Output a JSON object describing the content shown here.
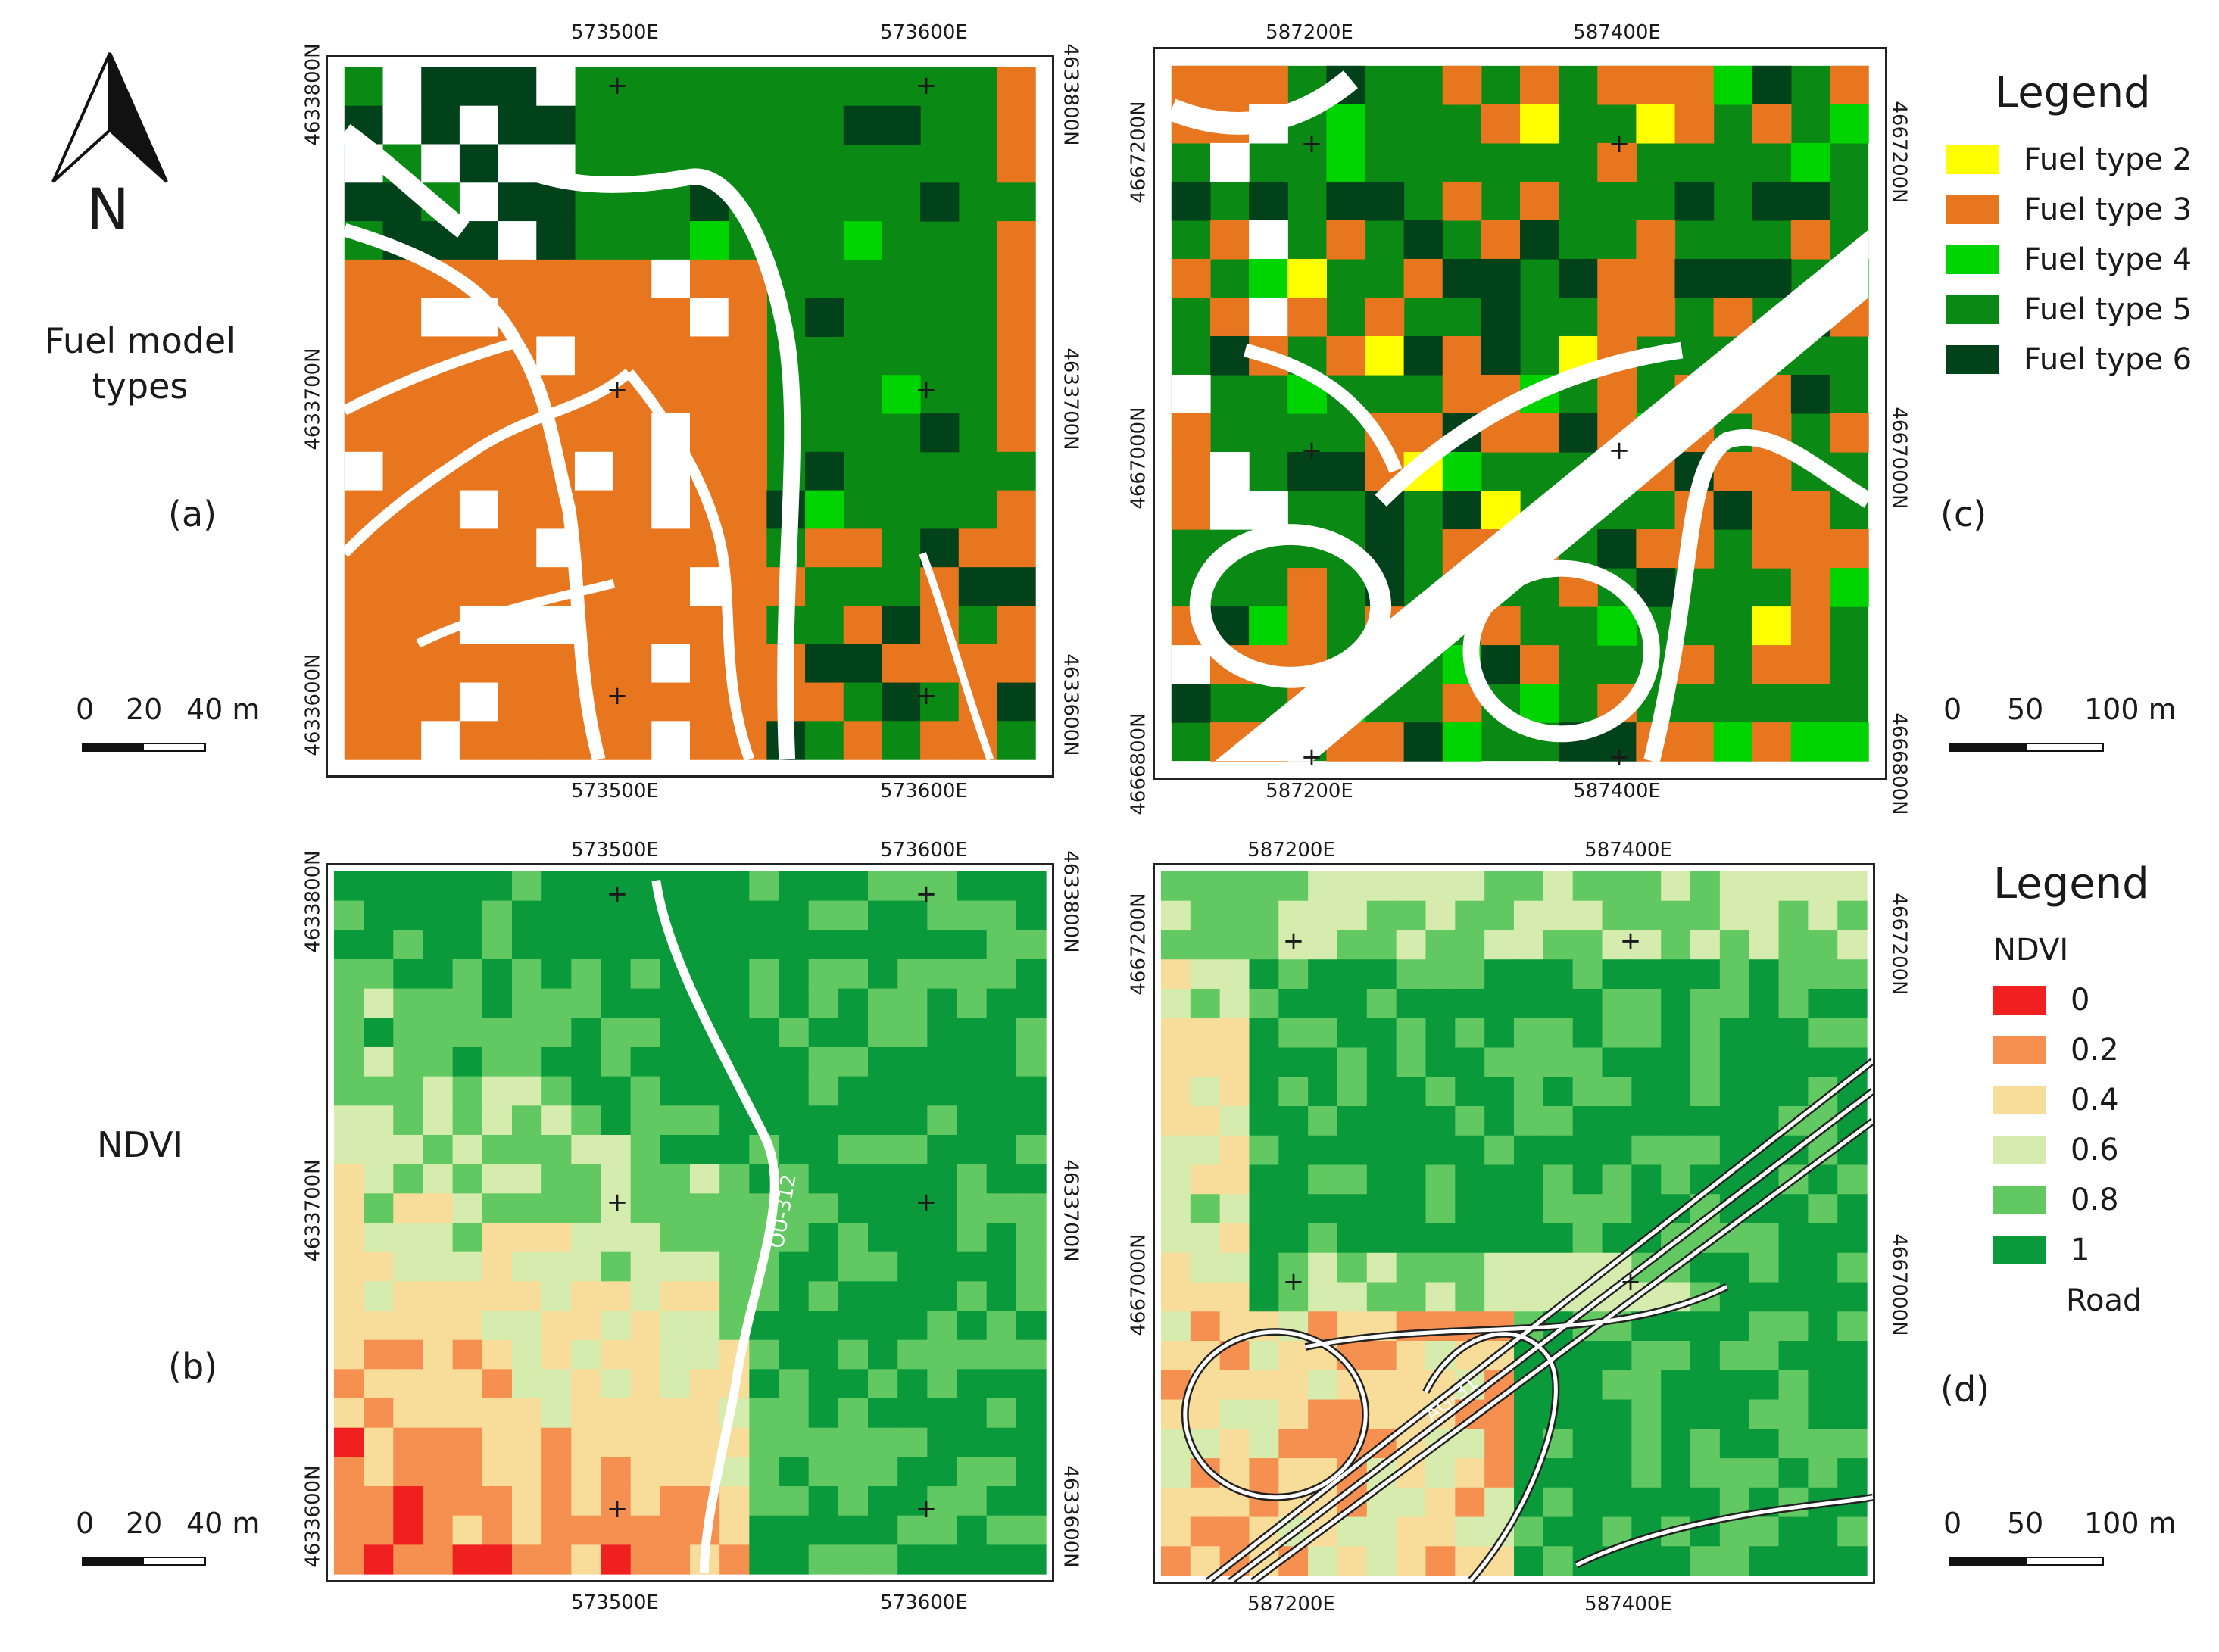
{
  "north_arrow": {
    "letter": "N"
  },
  "row_labels": {
    "top": "Fuel model types",
    "bottom": "NDVI"
  },
  "panel_labels": {
    "a": "(a)",
    "b": "(b)",
    "c": "(c)",
    "d": "(d)"
  },
  "scale_left": {
    "l0": "0",
    "l1": "20",
    "l2": "40 m"
  },
  "scale_right": {
    "l0": "0",
    "l1": "50",
    "l2": "100 m"
  },
  "coords_left": {
    "e1": "573500E",
    "e2": "573600E",
    "n1": "4633800N",
    "n2": "4633700N",
    "n3": "4633600N"
  },
  "coords_right": {
    "e1": "587200E",
    "e2": "587400E",
    "n1": "4667200N",
    "n2": "4667000N",
    "n3": "4666800N"
  },
  "road_labels": {
    "left": "OU-312",
    "right": "AG-31"
  },
  "legend_fuel": {
    "title": "Legend",
    "items": [
      {
        "label": "Fuel type 2",
        "color": "#ffff00"
      },
      {
        "label": "Fuel type 3",
        "color": "#e8761e"
      },
      {
        "label": "Fuel type 4",
        "color": "#00d400"
      },
      {
        "label": "Fuel type 5",
        "color": "#0a8a14"
      },
      {
        "label": "Fuel type 6",
        "color": "#02421a"
      }
    ]
  },
  "legend_ndvi": {
    "title": "Legend",
    "subtitle": "NDVI",
    "items": [
      {
        "label": "0",
        "color": "#f02020"
      },
      {
        "label": "0.2",
        "color": "#f59050"
      },
      {
        "label": "0.4",
        "color": "#f7dc9a"
      },
      {
        "label": "0.6",
        "color": "#d6ecae"
      },
      {
        "label": "0.8",
        "color": "#62c862"
      },
      {
        "label": "1",
        "color": "#0a9a3c"
      }
    ],
    "road_label": "Road"
  }
}
